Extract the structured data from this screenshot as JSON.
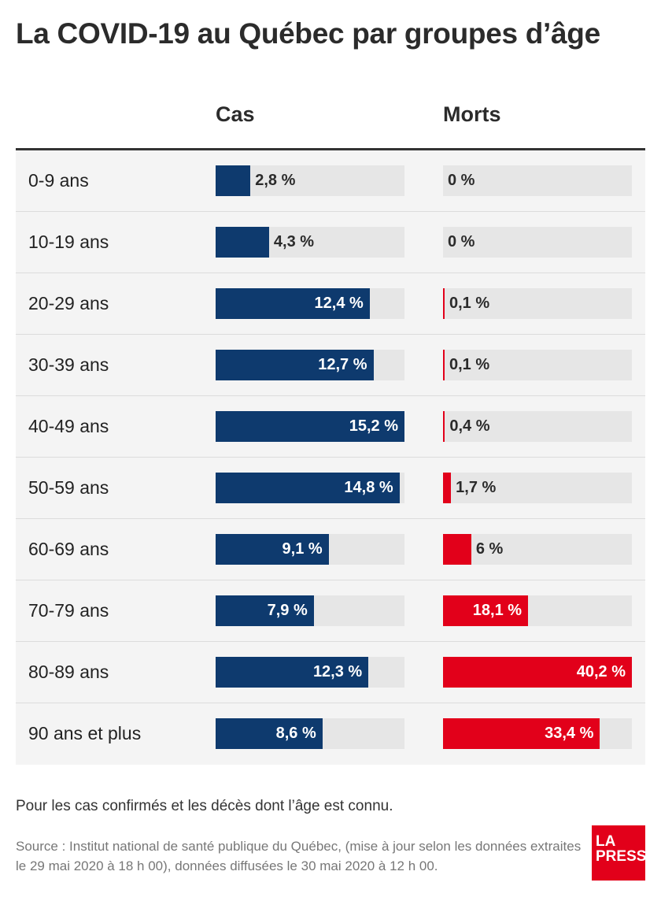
{
  "title": "La COVID-19 au Québec par groupes d’âge",
  "columns": {
    "cas": "Cas",
    "morts": "Morts"
  },
  "chart_data": {
    "type": "bar",
    "title": "La COVID-19 au Québec par groupes d’âge",
    "categories": [
      "0-9 ans",
      "10-19 ans",
      "20-29 ans",
      "30-39 ans",
      "40-49 ans",
      "50-59 ans",
      "60-69 ans",
      "70-79 ans",
      "80-89 ans",
      "90 ans et plus"
    ],
    "series": [
      {
        "name": "Cas",
        "values": [
          2.8,
          4.3,
          12.4,
          12.7,
          15.2,
          14.8,
          9.1,
          7.9,
          12.3,
          8.6
        ],
        "labels": [
          "2,8 %",
          "4,3 %",
          "12,4 %",
          "12,7 %",
          "15,2 %",
          "14,8 %",
          "9,1 %",
          "7,9 %",
          "12,3 %",
          "8,6 %"
        ],
        "color": "#0e3a6e",
        "max": 15.2
      },
      {
        "name": "Morts",
        "values": [
          0,
          0,
          0.1,
          0.1,
          0.4,
          1.7,
          6,
          18.1,
          40.2,
          33.4
        ],
        "labels": [
          "0 %",
          "0 %",
          "0,1 %",
          "0,1 %",
          "0,4 %",
          "1,7 %",
          "6 %",
          "18,1 %",
          "40,2 %",
          "33,4 %"
        ],
        "color": "#e2001a",
        "max": 40.2
      }
    ]
  },
  "note": "Pour les cas confirmés et les décès dont l’âge est connu.",
  "source": "Source : Institut national de santé publique du Québec, (mise à jour selon les données extraites le 29 mai 2020 à 18 h 00), données diffusées le 30 mai 2020 à 12 h 00.",
  "logo": {
    "line1": "LA",
    "line2": "PRESSE"
  }
}
